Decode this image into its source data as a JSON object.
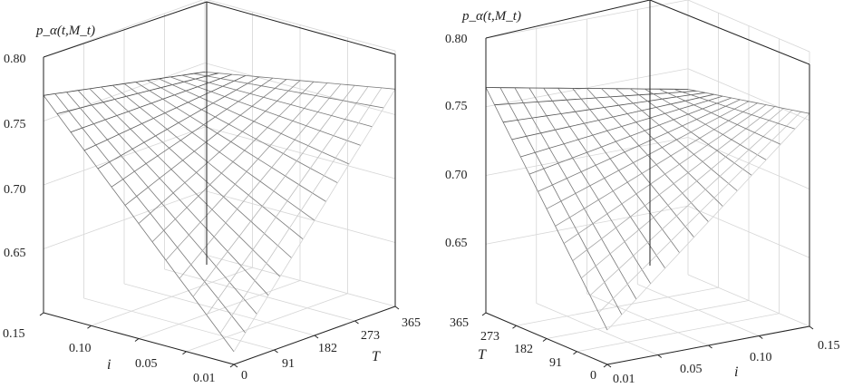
{
  "chart_data": [
    {
      "type": "surface",
      "zlabel": "p_α(t,M_t)",
      "xlabel": "i",
      "ylabel": "T",
      "i_ticks": [
        "0.15",
        "0.10",
        "0.05",
        "0.01"
      ],
      "T_ticks": [
        "0",
        "91",
        "182",
        "273",
        "365"
      ],
      "z_ticks": [
        "0.80",
        "0.75",
        "0.70",
        "0.65"
      ],
      "i_range": [
        0.01,
        0.15
      ],
      "T_range": [
        0,
        365
      ],
      "z_range": [
        0.6,
        0.8
      ],
      "grid": true,
      "corners": {
        "i_0.15_T_0": 0.77,
        "i_0.01_T_365": 0.77,
        "i_0.15_T_365": 0.743,
        "i_0.01_T_0": 0.61
      }
    },
    {
      "type": "surface",
      "zlabel": "p_α(t,M_t)",
      "xlabel": "i",
      "ylabel": "T",
      "i_ticks": [
        "0.01",
        "0.05",
        "0.10",
        "0.15"
      ],
      "T_ticks": [
        "365",
        "273",
        "182",
        "91",
        "0"
      ],
      "z_ticks": [
        "0.80",
        "0.75",
        "0.70",
        "0.65"
      ],
      "i_range": [
        0.01,
        0.15
      ],
      "T_range": [
        0,
        365
      ],
      "z_range": [
        0.6,
        0.8
      ],
      "grid": true,
      "corners": {
        "i_0.01_T_365": 0.764,
        "i_0.15_T_0": 0.755,
        "i_0.15_T_365": 0.735,
        "i_0.01_T_0": 0.625
      }
    }
  ]
}
